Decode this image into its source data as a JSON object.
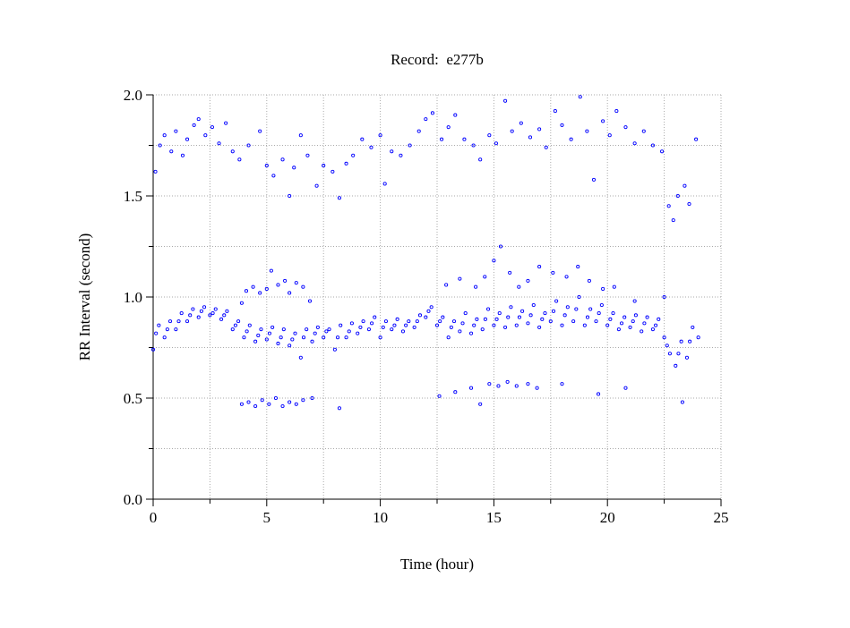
{
  "chart_data": {
    "type": "scatter",
    "title": "Record:  e277b",
    "x_label": "Time (hour)",
    "y_label": "RR Interval (second)",
    "color": "#0000ff",
    "grid": true,
    "xlim": [
      0,
      25
    ],
    "xticks": [
      0,
      5,
      10,
      15,
      20,
      25
    ],
    "minor_xticks": [
      2.5,
      7.5,
      12.5,
      17.5,
      22.5
    ],
    "ylim": [
      0,
      2
    ],
    "yticks": [
      {
        "value": 0,
        "label": "0.0"
      },
      0.5,
      {
        "value": 1,
        "label": "1.0"
      },
      1.5,
      {
        "value": 2,
        "label": "2.0"
      }
    ],
    "minor_yticks": [
      0.25,
      0.75,
      1.25,
      1.75
    ],
    "series": [
      {
        "x": [
          0,
          0.25,
          0.5,
          0.75,
          1,
          1.25,
          1.5,
          1.75,
          2,
          2.25,
          2.5,
          2.75,
          3,
          3.25,
          3.5,
          3.75,
          4,
          4.25,
          4.5,
          4.75,
          5,
          5.25,
          5.5,
          5.75,
          6,
          6.25,
          6.5,
          6.75,
          7,
          7.25,
          7.5,
          7.75,
          8,
          8.25,
          8.5,
          8.75,
          9,
          9.25,
          9.5,
          9.75,
          10,
          10.25,
          10.5,
          10.75,
          11,
          11.25,
          11.5,
          11.75,
          12,
          12.25,
          12.5,
          12.75,
          13,
          13.25,
          13.5,
          13.75,
          14,
          14.25,
          14.5,
          14.75,
          15,
          15.25,
          15.5,
          15.75,
          16,
          16.25,
          16.5,
          16.75,
          17,
          17.25,
          17.5,
          17.75,
          18,
          18.25,
          18.5,
          18.75,
          19,
          19.25,
          19.5,
          19.75,
          20,
          20.25,
          20.5,
          20.75,
          21,
          21.25,
          21.5,
          21.75,
          22,
          22.25,
          22.5,
          22.75,
          23,
          23.25,
          23.5,
          23.75,
          24
        ],
        "values": [
          0.74,
          0.86,
          0.8,
          0.88,
          0.84,
          0.92,
          0.88,
          0.94,
          0.9,
          0.95,
          0.91,
          0.94,
          0.89,
          0.93,
          0.84,
          0.88,
          0.8,
          0.86,
          0.78,
          0.84,
          0.79,
          0.85,
          0.77,
          0.84,
          0.76,
          0.82,
          0.7,
          0.84,
          0.78,
          0.85,
          0.8,
          0.84,
          0.74,
          0.86,
          0.8,
          0.87,
          0.82,
          0.88,
          0.84,
          0.9,
          0.8,
          0.88,
          0.84,
          0.89,
          0.83,
          0.88,
          0.85,
          0.91,
          0.9,
          0.95,
          0.86,
          0.9,
          0.8,
          0.88,
          0.83,
          0.92,
          0.82,
          0.89,
          0.84,
          0.94,
          0.86,
          0.92,
          0.85,
          0.95,
          0.86,
          0.93,
          0.87,
          0.96,
          0.85,
          0.92,
          0.88,
          0.98,
          0.86,
          0.95,
          0.88,
          1.0,
          0.86,
          0.94,
          0.88,
          0.96,
          0.86,
          0.92,
          0.84,
          0.9,
          0.85,
          0.91,
          0.83,
          0.9,
          0.84,
          0.89,
          0.8,
          0.72,
          0.66,
          0.78,
          0.7,
          0.85,
          0.8
        ]
      },
      {
        "x": [
          0.125,
          0.625,
          1.125,
          1.625,
          2.125,
          2.625,
          3.125,
          3.625,
          4.125,
          4.625,
          5.125,
          5.625,
          6.125,
          6.625,
          7.125,
          7.625,
          8.125,
          8.625,
          9.125,
          9.625,
          10.125,
          10.625,
          11.125,
          11.625,
          12.125,
          12.625,
          13.125,
          13.625,
          14.125,
          14.625,
          15.125,
          15.625,
          16.125,
          16.625,
          17.125,
          17.625,
          18.125,
          18.625,
          19.125,
          19.625,
          20.125,
          20.625,
          21.125,
          21.625,
          22.125,
          22.625,
          23.125,
          23.625
        ],
        "values": [
          0.82,
          0.84,
          0.88,
          0.91,
          0.93,
          0.92,
          0.91,
          0.86,
          0.83,
          0.81,
          0.82,
          0.8,
          0.79,
          0.8,
          0.82,
          0.83,
          0.8,
          0.83,
          0.85,
          0.87,
          0.85,
          0.86,
          0.86,
          0.88,
          0.93,
          0.88,
          0.85,
          0.87,
          0.86,
          0.89,
          0.89,
          0.9,
          0.9,
          0.91,
          0.89,
          0.93,
          0.91,
          0.94,
          0.9,
          0.92,
          0.89,
          0.87,
          0.88,
          0.87,
          0.86,
          0.76,
          0.72,
          0.78
        ]
      },
      {
        "x": [
          0.1,
          0.3,
          0.5,
          0.8,
          1.0,
          1.3,
          1.5,
          1.8,
          2.0,
          2.3,
          2.6,
          2.9,
          3.2,
          3.5,
          3.8,
          4.2,
          4.7,
          5.0,
          5.3,
          5.7,
          6.0,
          6.2,
          6.5,
          6.8,
          7.2,
          7.5,
          7.9,
          8.2,
          8.5,
          8.8,
          9.2,
          9.6,
          10.0,
          10.2,
          10.5,
          10.9,
          11.3,
          11.7,
          12.0,
          12.3,
          12.7,
          13.0,
          13.3,
          13.7,
          14.1,
          14.4,
          14.8,
          15.1,
          15.5,
          15.8,
          16.2,
          16.6,
          17.0,
          17.3,
          17.7,
          18.0,
          18.4,
          18.8,
          19.1,
          19.4,
          19.8,
          20.1,
          20.4,
          20.8,
          21.2,
          21.6,
          22.0,
          22.4,
          22.7,
          22.9,
          23.1,
          23.4,
          23.6,
          23.9
        ],
        "values": [
          1.62,
          1.75,
          1.8,
          1.72,
          1.82,
          1.7,
          1.78,
          1.85,
          1.88,
          1.8,
          1.84,
          1.76,
          1.86,
          1.72,
          1.68,
          1.75,
          1.82,
          1.65,
          1.6,
          1.68,
          1.5,
          1.64,
          1.8,
          1.7,
          1.55,
          1.65,
          1.62,
          1.49,
          1.66,
          1.7,
          1.78,
          1.74,
          1.8,
          1.56,
          1.72,
          1.7,
          1.75,
          1.82,
          1.88,
          1.91,
          1.78,
          1.84,
          1.9,
          1.78,
          1.75,
          1.68,
          1.8,
          1.76,
          1.97,
          1.82,
          1.86,
          1.79,
          1.83,
          1.74,
          1.92,
          1.85,
          1.78,
          1.99,
          1.82,
          1.58,
          1.87,
          1.8,
          1.92,
          1.84,
          1.76,
          1.82,
          1.75,
          1.72,
          1.45,
          1.38,
          1.5,
          1.55,
          1.46,
          1.78
        ]
      },
      {
        "x": [
          3.9,
          4.1,
          4.4,
          4.7,
          5.0,
          5.2,
          5.5,
          5.8,
          6.0,
          6.3,
          6.6,
          6.9,
          12.9,
          13.5,
          14.2,
          14.6,
          15.0,
          15.3,
          15.7,
          16.1,
          16.5,
          17.0,
          17.6,
          18.2,
          18.7,
          19.2,
          19.8,
          20.3,
          21.2,
          22.5
        ],
        "values": [
          0.97,
          1.03,
          1.05,
          1.02,
          1.04,
          1.13,
          1.06,
          1.08,
          1.02,
          1.07,
          1.05,
          0.98,
          1.06,
          1.09,
          1.05,
          1.1,
          1.18,
          1.25,
          1.12,
          1.05,
          1.08,
          1.15,
          1.12,
          1.1,
          1.15,
          1.08,
          1.04,
          1.05,
          0.98,
          1.0
        ]
      },
      {
        "x": [
          3.9,
          4.2,
          4.5,
          4.8,
          5.1,
          5.4,
          5.7,
          6.0,
          6.3,
          6.6,
          7.0,
          8.2,
          12.6,
          13.3,
          14.0,
          14.4,
          14.8,
          15.2,
          15.6,
          16.0,
          16.5,
          16.9,
          18.0,
          19.6,
          20.8,
          23.3
        ],
        "values": [
          0.47,
          0.48,
          0.46,
          0.49,
          0.47,
          0.5,
          0.46,
          0.48,
          0.47,
          0.49,
          0.5,
          0.45,
          0.51,
          0.53,
          0.55,
          0.47,
          0.57,
          0.56,
          0.58,
          0.56,
          0.57,
          0.55,
          0.57,
          0.52,
          0.55,
          0.48
        ]
      }
    ]
  }
}
